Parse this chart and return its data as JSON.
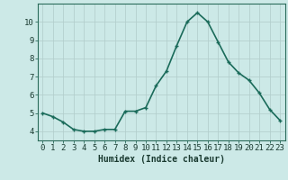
{
  "x": [
    0,
    1,
    2,
    3,
    4,
    5,
    6,
    7,
    8,
    9,
    10,
    11,
    12,
    13,
    14,
    15,
    16,
    17,
    18,
    19,
    20,
    21,
    22,
    23
  ],
  "y": [
    5.0,
    4.8,
    4.5,
    4.1,
    4.0,
    4.0,
    4.1,
    4.1,
    5.1,
    5.1,
    5.3,
    6.5,
    7.3,
    8.7,
    10.0,
    10.5,
    10.0,
    8.9,
    7.8,
    7.2,
    6.8,
    6.1,
    5.2,
    4.6
  ],
  "xlabel": "Humidex (Indice chaleur)",
  "ylim": [
    3.5,
    11.0
  ],
  "xlim": [
    -0.5,
    23.5
  ],
  "yticks": [
    4,
    5,
    6,
    7,
    8,
    9,
    10
  ],
  "xticks": [
    0,
    1,
    2,
    3,
    4,
    5,
    6,
    7,
    8,
    9,
    10,
    11,
    12,
    13,
    14,
    15,
    16,
    17,
    18,
    19,
    20,
    21,
    22,
    23
  ],
  "line_color": "#1a6b5a",
  "marker": "+",
  "marker_size": 3,
  "bg_color": "#cce9e7",
  "plot_bg_color": "#cce9e7",
  "grid_color": "#b0ccca",
  "axis_color": "#2a6b5a",
  "tick_label_color": "#1a3a30",
  "xlabel_color": "#1a3a30",
  "xlabel_fontsize": 7,
  "tick_fontsize": 6.5,
  "line_width": 1.2
}
